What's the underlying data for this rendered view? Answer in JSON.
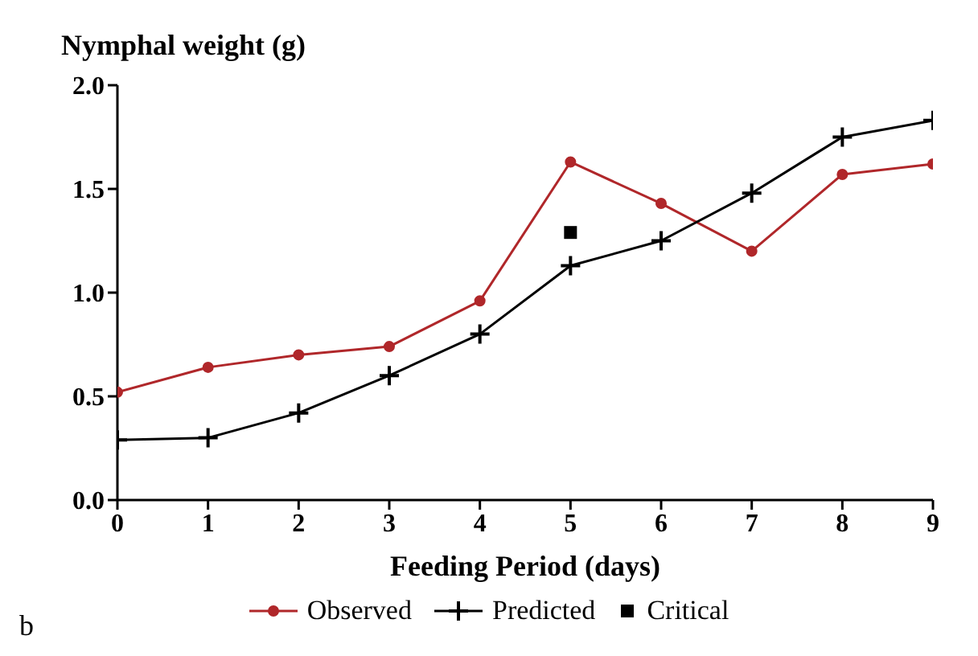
{
  "chart_data": {
    "type": "line",
    "ylabel": "Nymphal weight (g)",
    "xlabel": "Feeding Period (days)",
    "x": [
      0,
      1,
      2,
      3,
      4,
      5,
      6,
      7,
      8,
      9
    ],
    "series": [
      {
        "name": "Observed",
        "color": "#b0272a",
        "marker": "circle",
        "values": [
          0.52,
          0.64,
          0.7,
          0.74,
          0.96,
          1.63,
          1.43,
          1.2,
          1.57,
          1.62
        ]
      },
      {
        "name": "Predicted",
        "color": "#000000",
        "marker": "cross",
        "values": [
          0.29,
          0.3,
          0.42,
          0.6,
          0.8,
          1.13,
          1.25,
          1.48,
          1.75,
          1.83
        ]
      },
      {
        "name": "Critical",
        "type": "scatter",
        "color": "#000000",
        "marker": "square",
        "x": [
          5
        ],
        "values": [
          1.29
        ]
      }
    ],
    "xlim": [
      0,
      9
    ],
    "xticks": [
      0,
      1,
      2,
      3,
      4,
      5,
      6,
      7,
      8,
      9
    ],
    "ylim": [
      0,
      2
    ],
    "yticks": [
      {
        "value": 0,
        "label": "0.0"
      },
      {
        "value": 0.5,
        "label": "0.5"
      },
      {
        "value": 1,
        "label": "1.0"
      },
      {
        "value": 1.5,
        "label": "1.5"
      },
      {
        "value": 2,
        "label": "2.0"
      }
    ],
    "legend": "bottom",
    "annotations": [
      "b"
    ]
  }
}
